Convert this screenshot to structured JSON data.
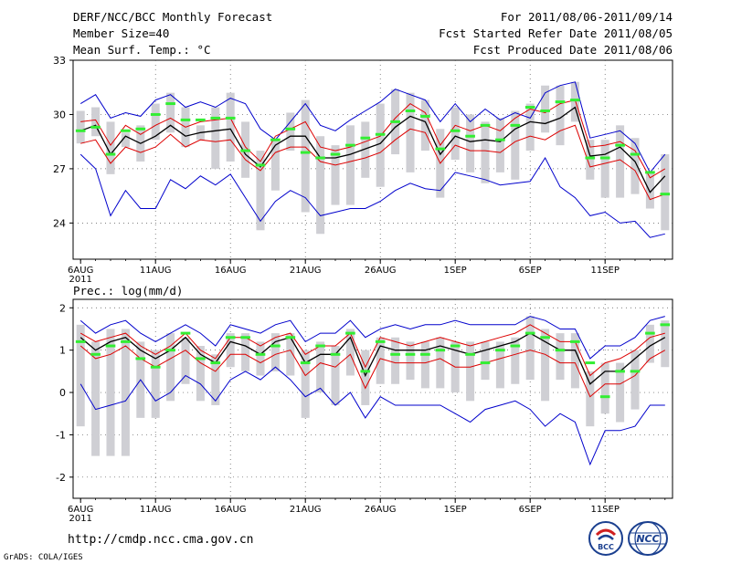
{
  "header": {
    "title": "DERF/NCC/BCC Monthly Forecast",
    "member_size": "Member Size=40",
    "variable": "Mean Surf. Temp.: °C",
    "period": "For 2011/08/06-2011/09/14",
    "fcst_started": "Fcst Started Refer Date 2011/08/05",
    "fcst_produced": "Fcst Produced Date 2011/08/06"
  },
  "footer": {
    "url": "http://cmdp.ncc.cma.gov.cn",
    "grads": "GrADS: COLA/IGES",
    "logo_left_text": "BCC",
    "logo_right_text": "NCC"
  },
  "colors": {
    "envelope": "#0000cc",
    "spread": "#dd0000",
    "mean": "#000000",
    "bar": "#cfcfd4",
    "marker": "#33ee33",
    "grid": "#555555"
  },
  "chart_data": [
    {
      "type": "line",
      "title": "Mean Surf. Temp.: °C",
      "x_start": "2011-08-06",
      "days": 40,
      "x_tick_days": [
        0,
        5,
        10,
        15,
        20,
        25,
        30,
        35
      ],
      "x_tick_labels": [
        "6AUG",
        "11AUG",
        "16AUG",
        "21AUG",
        "26AUG",
        "1SEP",
        "6SEP",
        "11SEP"
      ],
      "x_year_label": "2011",
      "ylim": [
        22,
        33
      ],
      "yticks": [
        24,
        27,
        30,
        33
      ],
      "series": [
        {
          "name": "max",
          "color": "#0000cc",
          "values": [
            30.6,
            31.1,
            29.8,
            30.1,
            29.9,
            30.8,
            31.1,
            30.4,
            30.7,
            30.4,
            30.9,
            30.6,
            29.2,
            28.6,
            29.6,
            30.6,
            29.4,
            29.1,
            29.7,
            30.2,
            30.7,
            31.4,
            31.1,
            30.8,
            29.6,
            30.6,
            29.6,
            30.3,
            29.7,
            30.1,
            29.8,
            31.2,
            31.6,
            31.8,
            28.7,
            28.9,
            29.1,
            28.4,
            26.8,
            27.8
          ]
        },
        {
          "name": "mean+sd",
          "color": "#dd0000",
          "values": [
            29.6,
            29.7,
            28.3,
            29.4,
            28.9,
            29.4,
            29.8,
            29.3,
            29.6,
            29.7,
            29.8,
            28.2,
            27.4,
            28.8,
            29.2,
            29.6,
            28.2,
            28.0,
            28.2,
            28.5,
            28.8,
            29.8,
            30.6,
            30.1,
            28.3,
            29.4,
            29.1,
            29.4,
            29.1,
            29.8,
            30.3,
            30.1,
            30.6,
            30.8,
            28.2,
            28.3,
            28.5,
            28.0,
            26.5,
            27.0
          ]
        },
        {
          "name": "mean",
          "color": "#000000",
          "values": [
            29.1,
            29.4,
            27.8,
            28.8,
            28.4,
            28.8,
            29.4,
            28.8,
            29.0,
            29.1,
            29.2,
            27.8,
            27.1,
            28.3,
            28.8,
            28.8,
            27.6,
            27.6,
            27.8,
            28.1,
            28.4,
            29.3,
            29.9,
            29.6,
            27.8,
            28.8,
            28.5,
            28.6,
            28.5,
            29.2,
            29.6,
            29.5,
            29.8,
            30.4,
            27.7,
            27.8,
            28.2,
            27.4,
            25.7,
            26.6
          ]
        },
        {
          "name": "mean-sd",
          "color": "#dd0000",
          "values": [
            28.4,
            28.6,
            27.3,
            28.2,
            27.9,
            28.2,
            28.9,
            28.2,
            28.6,
            28.5,
            28.6,
            27.5,
            26.9,
            27.9,
            28.2,
            28.2,
            27.4,
            27.2,
            27.4,
            27.6,
            27.9,
            28.6,
            29.2,
            29.0,
            27.3,
            28.3,
            28.0,
            28.0,
            27.9,
            28.5,
            28.8,
            28.6,
            29.1,
            29.4,
            27.1,
            27.3,
            27.5,
            26.9,
            25.3,
            25.6
          ]
        },
        {
          "name": "min",
          "color": "#0000cc",
          "values": [
            27.8,
            27.0,
            24.4,
            25.8,
            24.8,
            24.8,
            26.4,
            25.9,
            26.6,
            26.1,
            26.7,
            25.4,
            24.1,
            25.2,
            25.8,
            25.4,
            24.4,
            24.6,
            24.8,
            24.8,
            25.2,
            25.8,
            26.2,
            25.9,
            25.8,
            26.8,
            26.6,
            26.4,
            26.1,
            26.2,
            26.3,
            27.6,
            26.0,
            25.4,
            24.4,
            24.6,
            24.0,
            24.1,
            23.2,
            23.4
          ]
        }
      ],
      "bars": {
        "low": [
          28.4,
          28.8,
          26.7,
          28.2,
          27.4,
          28.6,
          29.0,
          28.2,
          28.6,
          27.0,
          27.4,
          26.5,
          23.6,
          25.8,
          28.0,
          24.6,
          23.4,
          25.0,
          25.0,
          26.5,
          26.0,
          27.8,
          26.8,
          28.0,
          25.4,
          27.5,
          26.8,
          26.2,
          26.8,
          26.4,
          28.0,
          29.0,
          28.3,
          29.6,
          26.4,
          25.4,
          25.4,
          25.6,
          24.8,
          23.6
        ],
        "high": [
          30.2,
          30.4,
          29.6,
          29.0,
          29.4,
          30.6,
          31.2,
          30.4,
          29.4,
          30.4,
          31.2,
          29.6,
          28.0,
          28.6,
          30.1,
          30.8,
          28.8,
          28.3,
          29.4,
          29.6,
          30.6,
          31.4,
          31.2,
          30.8,
          29.2,
          30.4,
          30.0,
          29.6,
          29.8,
          30.2,
          30.6,
          31.6,
          31.6,
          31.8,
          28.6,
          28.6,
          29.4,
          28.7,
          26.8,
          27.8
        ]
      },
      "markers": [
        29.1,
        29.3,
        27.8,
        29.1,
        29.2,
        30.0,
        30.6,
        29.7,
        29.7,
        29.8,
        29.8,
        28.0,
        27.2,
        28.6,
        29.2,
        27.9,
        27.6,
        27.8,
        28.3,
        28.7,
        28.9,
        29.6,
        30.2,
        29.9,
        28.1,
        29.1,
        28.8,
        29.4,
        28.6,
        29.4,
        30.4,
        30.2,
        30.7,
        30.8,
        27.6,
        27.6,
        28.3,
        27.8,
        26.8,
        25.6
      ]
    },
    {
      "type": "line",
      "title": "Prec.: log(mm/d)",
      "x_start": "2011-08-06",
      "days": 40,
      "x_tick_days": [
        0,
        5,
        10,
        15,
        20,
        25,
        30,
        35
      ],
      "x_tick_labels": [
        "6AUG",
        "11AUG",
        "16AUG",
        "21AUG",
        "26AUG",
        "1SEP",
        "6SEP",
        "11SEP"
      ],
      "x_year_label": "2011",
      "ylim": [
        -2.5,
        2.2
      ],
      "yticks": [
        -2,
        -1,
        0,
        1,
        2
      ],
      "series": [
        {
          "name": "max",
          "color": "#0000cc",
          "values": [
            1.7,
            1.4,
            1.6,
            1.7,
            1.4,
            1.2,
            1.4,
            1.6,
            1.4,
            1.1,
            1.6,
            1.5,
            1.4,
            1.6,
            1.7,
            1.2,
            1.4,
            1.4,
            1.7,
            1.3,
            1.5,
            1.6,
            1.5,
            1.6,
            1.6,
            1.7,
            1.6,
            1.6,
            1.6,
            1.6,
            1.8,
            1.7,
            1.5,
            1.5,
            0.8,
            1.1,
            1.1,
            1.3,
            1.7,
            1.8
          ]
        },
        {
          "name": "mean+sd",
          "color": "#dd0000",
          "values": [
            1.4,
            1.2,
            1.3,
            1.4,
            1.1,
            0.9,
            1.1,
            1.4,
            1.0,
            0.8,
            1.3,
            1.3,
            1.1,
            1.3,
            1.4,
            0.9,
            1.1,
            1.1,
            1.4,
            0.6,
            1.3,
            1.2,
            1.1,
            1.2,
            1.3,
            1.2,
            1.1,
            1.2,
            1.3,
            1.4,
            1.6,
            1.4,
            1.2,
            1.2,
            0.4,
            0.7,
            0.8,
            1.0,
            1.3,
            1.4
          ]
        },
        {
          "name": "mean",
          "color": "#000000",
          "values": [
            1.3,
            1.0,
            1.2,
            1.3,
            1.0,
            0.8,
            1.0,
            1.3,
            0.9,
            0.7,
            1.2,
            1.1,
            0.9,
            1.2,
            1.3,
            0.7,
            0.9,
            0.9,
            1.3,
            0.4,
            1.1,
            1.0,
            1.0,
            1.0,
            1.1,
            1.0,
            0.9,
            1.0,
            1.1,
            1.2,
            1.4,
            1.2,
            1.0,
            1.0,
            0.2,
            0.5,
            0.5,
            0.8,
            1.1,
            1.3
          ]
        },
        {
          "name": "mean-sd",
          "color": "#dd0000",
          "values": [
            1.1,
            0.8,
            0.9,
            1.1,
            0.8,
            0.6,
            0.8,
            1.0,
            0.7,
            0.5,
            0.9,
            0.9,
            0.7,
            0.9,
            1.0,
            0.4,
            0.7,
            0.6,
            0.9,
            0.1,
            0.8,
            0.7,
            0.7,
            0.7,
            0.8,
            0.6,
            0.6,
            0.7,
            0.8,
            0.9,
            1.0,
            0.9,
            0.7,
            0.7,
            -0.1,
            0.2,
            0.2,
            0.4,
            0.8,
            1.0
          ]
        },
        {
          "name": "min",
          "color": "#0000cc",
          "values": [
            0.2,
            -0.4,
            -0.3,
            -0.2,
            0.3,
            -0.2,
            0.0,
            0.4,
            0.2,
            -0.2,
            0.3,
            0.5,
            0.3,
            0.6,
            0.3,
            -0.1,
            0.1,
            -0.3,
            0.0,
            -0.6,
            -0.1,
            -0.3,
            -0.3,
            -0.3,
            -0.3,
            -0.5,
            -0.7,
            -0.4,
            -0.3,
            -0.2,
            -0.4,
            -0.8,
            -0.5,
            -0.7,
            -1.7,
            -0.9,
            -0.9,
            -0.8,
            -0.3,
            -0.3
          ]
        }
      ],
      "bars": {
        "low": [
          -0.8,
          -1.5,
          -1.5,
          -1.5,
          -0.6,
          -0.6,
          -0.2,
          0.2,
          -0.2,
          -0.3,
          0.6,
          0.5,
          0.4,
          0.5,
          0.4,
          -0.6,
          0.0,
          -0.3,
          0.4,
          -0.3,
          0.2,
          0.2,
          0.3,
          0.1,
          0.1,
          0.0,
          -0.2,
          0.3,
          0.1,
          0.2,
          0.3,
          -0.2,
          0.3,
          0.1,
          -0.8,
          -0.5,
          -0.7,
          -0.4,
          0.7,
          0.6
        ],
        "high": [
          1.6,
          1.2,
          1.5,
          1.5,
          1.2,
          1.0,
          1.4,
          1.3,
          1.1,
          0.9,
          1.4,
          1.4,
          1.2,
          1.4,
          1.4,
          1.0,
          1.2,
          1.1,
          1.5,
          1.0,
          1.3,
          1.3,
          1.2,
          1.2,
          1.3,
          1.2,
          1.2,
          1.2,
          1.2,
          1.3,
          1.8,
          1.5,
          1.4,
          1.4,
          0.5,
          0.7,
          0.7,
          1.0,
          1.6,
          1.7
        ]
      },
      "markers": [
        1.2,
        0.9,
        1.1,
        1.2,
        0.8,
        0.6,
        1.0,
        1.4,
        0.8,
        0.7,
        1.3,
        1.3,
        0.9,
        1.1,
        1.3,
        0.7,
        1.1,
        0.9,
        1.4,
        0.5,
        1.2,
        0.9,
        0.9,
        0.9,
        1.0,
        1.1,
        0.9,
        0.7,
        1.0,
        1.1,
        1.4,
        1.3,
        1.0,
        1.2,
        0.7,
        -0.1,
        0.5,
        0.5,
        1.4,
        1.6
      ]
    }
  ]
}
